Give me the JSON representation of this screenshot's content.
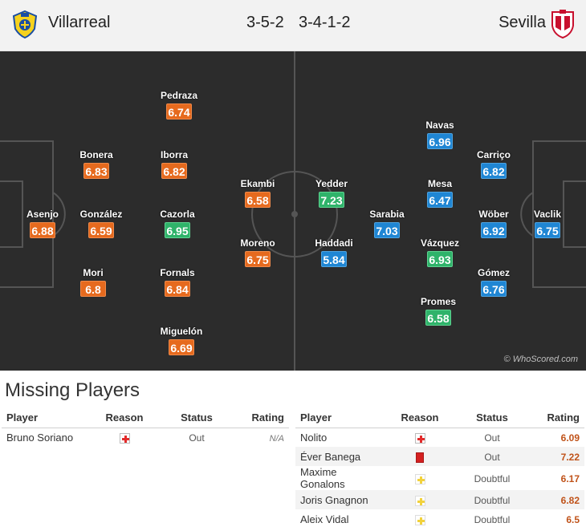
{
  "header": {
    "home_team": "Villarreal",
    "away_team": "Sevilla",
    "home_formation": "3-5-2",
    "away_formation": "3-4-1-2",
    "home_crest_icon": "villarreal-crest-icon",
    "away_crest_icon": "sevilla-crest-icon"
  },
  "pitch": {
    "watermark": "© WhoScored.com",
    "home_players": [
      {
        "name": "Asenjo",
        "rating": "6.88",
        "color": "orange"
      },
      {
        "name": "Bonera",
        "rating": "6.83",
        "color": "orange"
      },
      {
        "name": "González",
        "rating": "6.59",
        "color": "orange"
      },
      {
        "name": "Mori",
        "rating": "6.8",
        "color": "orange"
      },
      {
        "name": "Pedraza",
        "rating": "6.74",
        "color": "orange"
      },
      {
        "name": "Iborra",
        "rating": "6.82",
        "color": "orange"
      },
      {
        "name": "Cazorla",
        "rating": "6.95",
        "color": "green"
      },
      {
        "name": "Fornals",
        "rating": "6.84",
        "color": "orange"
      },
      {
        "name": "Miguelón",
        "rating": "6.69",
        "color": "orange"
      },
      {
        "name": "Ekambi",
        "rating": "6.58",
        "color": "orange"
      },
      {
        "name": "Moreno",
        "rating": "6.75",
        "color": "orange"
      }
    ],
    "away_players": [
      {
        "name": "Yedder",
        "rating": "7.23",
        "color": "green"
      },
      {
        "name": "Haddadi",
        "rating": "5.84",
        "color": "blue"
      },
      {
        "name": "Sarabia",
        "rating": "7.03",
        "color": "blue"
      },
      {
        "name": "Navas",
        "rating": "6.96",
        "color": "blue"
      },
      {
        "name": "Mesa",
        "rating": "6.47",
        "color": "blue"
      },
      {
        "name": "Vázquez",
        "rating": "6.93",
        "color": "green"
      },
      {
        "name": "Promes",
        "rating": "6.58",
        "color": "green"
      },
      {
        "name": "Carriço",
        "rating": "6.82",
        "color": "blue"
      },
      {
        "name": "Wöber",
        "rating": "6.92",
        "color": "blue"
      },
      {
        "name": "Gómez",
        "rating": "6.76",
        "color": "blue"
      },
      {
        "name": "Vaclik",
        "rating": "6.75",
        "color": "blue"
      }
    ]
  },
  "missing": {
    "title": "Missing Players",
    "columns": {
      "player": "Player",
      "reason": "Reason",
      "status": "Status",
      "rating": "Rating"
    },
    "home": [
      {
        "player": "Bruno Soriano",
        "reason": "injury-icon",
        "status": "Out",
        "rating": "N/A"
      }
    ],
    "away": [
      {
        "player": "Nolito",
        "reason": "injury-icon",
        "status": "Out",
        "rating": "6.09"
      },
      {
        "player": "Éver Banega",
        "reason": "red-card-icon",
        "status": "Out",
        "rating": "7.22"
      },
      {
        "player": "Maxime Gonalons",
        "reason": "doubtful-icon",
        "status": "Doubtful",
        "rating": "6.17"
      },
      {
        "player": "Joris Gnagnon",
        "reason": "doubtful-icon",
        "status": "Doubtful",
        "rating": "6.82"
      },
      {
        "player": "Aleix Vidal",
        "reason": "doubtful-icon",
        "status": "Doubtful",
        "rating": "6.5"
      }
    ]
  },
  "colors": {
    "orange": "#e66a1e",
    "blue": "#1f86d4",
    "green": "#2fb36a",
    "pitch": "#2c2c2c"
  }
}
